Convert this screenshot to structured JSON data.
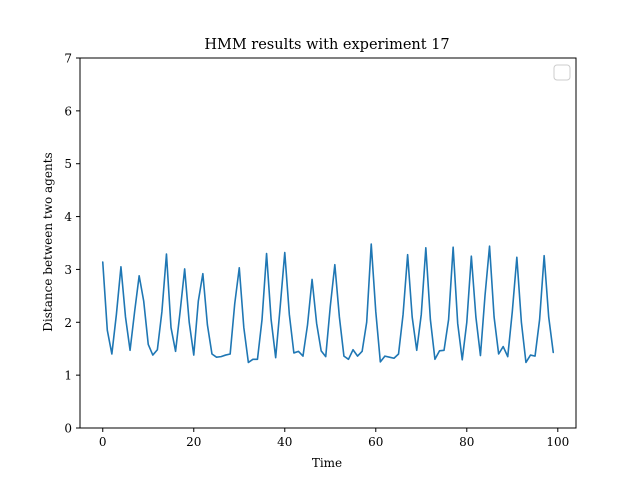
{
  "chart_data": {
    "type": "line",
    "title": "HMM results with experiment 17",
    "xlabel": "Time",
    "ylabel": "Distance between two agents",
    "xlim": [
      -5,
      104
    ],
    "ylim": [
      0,
      7
    ],
    "xticks": [
      0,
      20,
      40,
      60,
      80,
      100
    ],
    "yticks": [
      0,
      1,
      2,
      3,
      4,
      5,
      6,
      7
    ],
    "grid": false,
    "legend": "top-right (empty)",
    "line_color": "#1f77b4",
    "series": [
      {
        "x": [
          0,
          1,
          2,
          3,
          4,
          5,
          6,
          7,
          8,
          9,
          10,
          11,
          12,
          13,
          14,
          15,
          16,
          17,
          18,
          19,
          20,
          21,
          22,
          23,
          24,
          25,
          26,
          27,
          28,
          29,
          30,
          31,
          32,
          33,
          34,
          35,
          36,
          37,
          38,
          39,
          40,
          41,
          42,
          43,
          44,
          45,
          46,
          47,
          48,
          49,
          50,
          51,
          52,
          53,
          54,
          55,
          56,
          57,
          58,
          59,
          60,
          61,
          62,
          63,
          64,
          65,
          66,
          67,
          68,
          69,
          70,
          71,
          72,
          73,
          74,
          75,
          76,
          77,
          78,
          79,
          80,
          81,
          82,
          83,
          84,
          85,
          86,
          87,
          88,
          89,
          90,
          91,
          92,
          93,
          94,
          95,
          96,
          97,
          98,
          99
        ],
        "values": [
          3.14,
          1.85,
          1.4,
          2.15,
          3.05,
          2.1,
          1.47,
          2.2,
          2.88,
          2.4,
          1.58,
          1.38,
          1.48,
          2.2,
          3.29,
          1.9,
          1.45,
          2.2,
          3.01,
          2.0,
          1.38,
          2.4,
          2.92,
          1.95,
          1.4,
          1.34,
          1.35,
          1.38,
          1.4,
          2.35,
          3.03,
          1.9,
          1.24,
          1.3,
          1.3,
          2.05,
          3.3,
          2.05,
          1.33,
          2.3,
          3.32,
          2.15,
          1.42,
          1.45,
          1.36,
          1.95,
          2.81,
          1.98,
          1.46,
          1.35,
          2.3,
          3.09,
          2.1,
          1.36,
          1.3,
          1.48,
          1.36,
          1.45,
          2.0,
          3.48,
          2.2,
          1.25,
          1.36,
          1.34,
          1.32,
          1.4,
          2.15,
          3.28,
          2.1,
          1.47,
          2.15,
          3.41,
          2.05,
          1.3,
          1.46,
          1.47,
          2.05,
          3.42,
          1.98,
          1.29,
          2.0,
          3.25,
          2.1,
          1.37,
          2.5,
          3.44,
          2.1,
          1.4,
          1.54,
          1.35,
          2.2,
          3.23,
          2.0,
          1.24,
          1.38,
          1.36,
          2.05,
          3.26,
          2.1,
          1.43
        ]
      }
    ]
  }
}
